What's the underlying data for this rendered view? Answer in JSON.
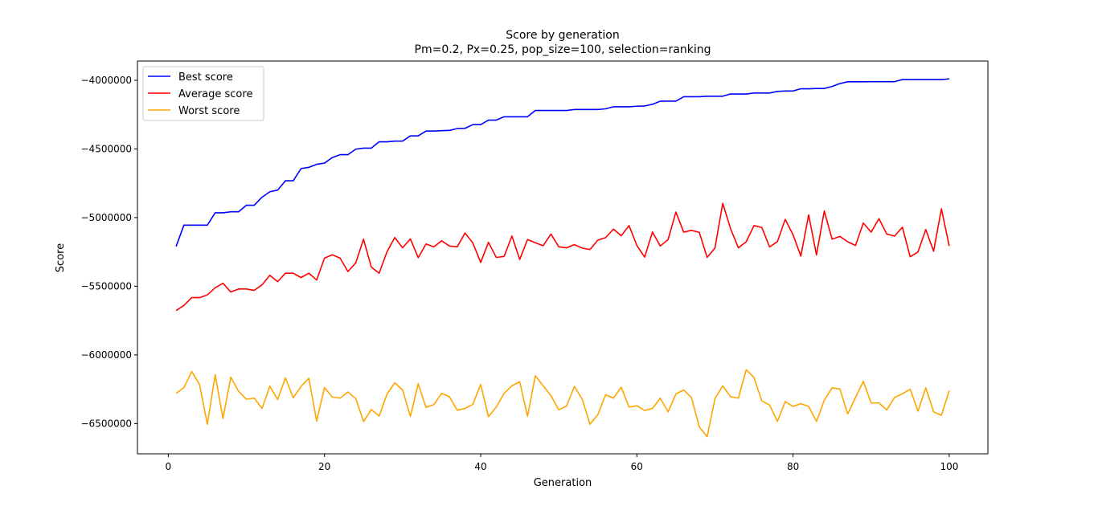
{
  "chart_data": {
    "type": "line",
    "title": "Score by generation",
    "subtitle": "Pm=0.2, Px=0.25, pop_size=100, selection=ranking",
    "xlabel": "Generation",
    "ylabel": "Score",
    "xlim": [
      -3.95,
      104.95
    ],
    "ylim": [
      -6720000,
      -3860000
    ],
    "xticks": [
      0,
      20,
      40,
      60,
      80,
      100
    ],
    "yticks": [
      -6500000,
      -6000000,
      -5500000,
      -5000000,
      -4500000,
      -4000000
    ],
    "xtick_labels": [
      "0",
      "20",
      "40",
      "60",
      "80",
      "100"
    ],
    "ytick_labels": [
      "−6500000",
      "−6000000",
      "−5500000",
      "−5000000",
      "−4500000",
      "−4000000"
    ],
    "grid": false,
    "legend_position": "top-left",
    "x_start": 1,
    "series": [
      {
        "name": "Best score",
        "color": "#0000ff",
        "values": [
          -5210000,
          -5055000,
          -5055000,
          -5055000,
          -5055000,
          -4965000,
          -4965000,
          -4958000,
          -4958000,
          -4910000,
          -4910000,
          -4852000,
          -4812000,
          -4800000,
          -4732000,
          -4732000,
          -4643000,
          -4634000,
          -4612000,
          -4603000,
          -4563000,
          -4542000,
          -4542000,
          -4502000,
          -4494000,
          -4494000,
          -4448000,
          -4448000,
          -4443000,
          -4443000,
          -4405000,
          -4405000,
          -4370000,
          -4370000,
          -4367000,
          -4365000,
          -4352000,
          -4350000,
          -4323000,
          -4323000,
          -4290000,
          -4290000,
          -4266000,
          -4266000,
          -4266000,
          -4266000,
          -4220000,
          -4220000,
          -4220000,
          -4220000,
          -4220000,
          -4213000,
          -4213000,
          -4213000,
          -4213000,
          -4208000,
          -4193000,
          -4193000,
          -4193000,
          -4189000,
          -4187000,
          -4175000,
          -4152000,
          -4152000,
          -4152000,
          -4120000,
          -4120000,
          -4120000,
          -4116000,
          -4116000,
          -4116000,
          -4100000,
          -4100000,
          -4100000,
          -4093000,
          -4093000,
          -4093000,
          -4081000,
          -4078000,
          -4078000,
          -4062000,
          -4062000,
          -4060000,
          -4060000,
          -4045000,
          -4024000,
          -4011000,
          -4011000,
          -4011000,
          -4010000,
          -4010000,
          -4010000,
          -4010000,
          -3995000,
          -3995000,
          -3995000,
          -3995000,
          -3995000,
          -3995000,
          -3990000
        ]
      },
      {
        "name": "Average score",
        "color": "#ff0000",
        "values": [
          -5677000,
          -5640000,
          -5583000,
          -5583000,
          -5563000,
          -5511000,
          -5478000,
          -5542000,
          -5520000,
          -5520000,
          -5530000,
          -5490000,
          -5420000,
          -5467000,
          -5405000,
          -5405000,
          -5437000,
          -5405000,
          -5455000,
          -5295000,
          -5271000,
          -5295000,
          -5393000,
          -5330000,
          -5158000,
          -5361000,
          -5405000,
          -5250000,
          -5145000,
          -5220000,
          -5155000,
          -5292000,
          -5192000,
          -5213000,
          -5169000,
          -5207000,
          -5213000,
          -5112000,
          -5185000,
          -5327000,
          -5180000,
          -5290000,
          -5283000,
          -5134000,
          -5305000,
          -5160000,
          -5183000,
          -5205000,
          -5120000,
          -5213000,
          -5220000,
          -5197000,
          -5222000,
          -5233000,
          -5164000,
          -5146000,
          -5084000,
          -5132000,
          -5058000,
          -5203000,
          -5288000,
          -5105000,
          -5207000,
          -5160000,
          -4960000,
          -5106000,
          -5093000,
          -5108000,
          -5290000,
          -5222000,
          -4896000,
          -5081000,
          -5220000,
          -5176000,
          -5058000,
          -5072000,
          -5214000,
          -5175000,
          -5013000,
          -5125000,
          -5280000,
          -4980000,
          -5272000,
          -4952000,
          -5157000,
          -5137000,
          -5176000,
          -5203000,
          -5040000,
          -5106000,
          -5008000,
          -5120000,
          -5135000,
          -5070000,
          -5285000,
          -5250000,
          -5087000,
          -5245000,
          -4936000,
          -5207000
        ]
      },
      {
        "name": "Worst score",
        "color": "#ffa500",
        "values": [
          -6280000,
          -6238000,
          -6121000,
          -6216000,
          -6505000,
          -6145000,
          -6463000,
          -6162000,
          -6265000,
          -6323000,
          -6315000,
          -6390000,
          -6228000,
          -6325000,
          -6167000,
          -6312000,
          -6230000,
          -6170000,
          -6482000,
          -6238000,
          -6307000,
          -6315000,
          -6270000,
          -6318000,
          -6485000,
          -6398000,
          -6445000,
          -6287000,
          -6203000,
          -6255000,
          -6448000,
          -6210000,
          -6382000,
          -6362000,
          -6280000,
          -6305000,
          -6403000,
          -6390000,
          -6360000,
          -6215000,
          -6450000,
          -6380000,
          -6280000,
          -6225000,
          -6195000,
          -6447000,
          -6152000,
          -6225000,
          -6297000,
          -6400000,
          -6372000,
          -6230000,
          -6322000,
          -6505000,
          -6435000,
          -6290000,
          -6315000,
          -6235000,
          -6380000,
          -6370000,
          -6405000,
          -6390000,
          -6315000,
          -6415000,
          -6285000,
          -6255000,
          -6312000,
          -6525000,
          -6595000,
          -6320000,
          -6225000,
          -6305000,
          -6315000,
          -6108000,
          -6165000,
          -6335000,
          -6365000,
          -6485000,
          -6340000,
          -6375000,
          -6355000,
          -6375000,
          -6485000,
          -6330000,
          -6240000,
          -6248000,
          -6430000,
          -6310000,
          -6193000,
          -6350000,
          -6350000,
          -6400000,
          -6310000,
          -6283000,
          -6250000,
          -6410000,
          -6240000,
          -6415000,
          -6440000,
          -6260000
        ]
      }
    ]
  }
}
